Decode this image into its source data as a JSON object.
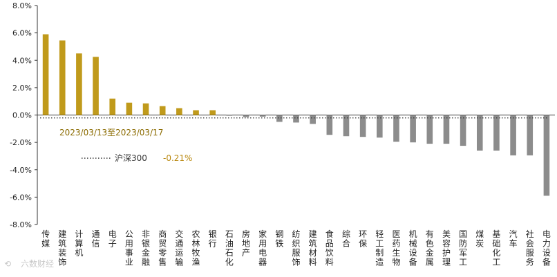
{
  "chart_data": {
    "type": "bar",
    "title": "",
    "xlabel": "",
    "ylabel": "",
    "ylim": [
      -8,
      8
    ],
    "yticks": [
      "8.0%",
      "6.0%",
      "4.0%",
      "2.0%",
      "0.0%",
      "-2.0%",
      "-4.0%",
      "-6.0%",
      "-8.0%"
    ],
    "categories": [
      "传媒",
      "建筑装饰",
      "计算机",
      "通信",
      "电子",
      "公用事业",
      "非银金融",
      "商贸零售",
      "交通运输",
      "农林牧渔",
      "银行",
      "石油石化",
      "房地产",
      "家用电器",
      "钢铁",
      "纺织服饰",
      "建筑材料",
      "食品饮料",
      "综合",
      "环保",
      "轻工制造",
      "医药生物",
      "机械设备",
      "有色金属",
      "美容护理",
      "国防军工",
      "煤炭",
      "基础化工",
      "汽车",
      "社会服务",
      "电力设备"
    ],
    "values": [
      5.9,
      5.45,
      4.5,
      4.25,
      1.2,
      0.9,
      0.85,
      0.65,
      0.5,
      0.35,
      0.35,
      -0.05,
      -0.15,
      -0.12,
      -0.5,
      -0.55,
      -0.65,
      -1.45,
      -1.55,
      -1.6,
      -1.65,
      -1.95,
      -2.0,
      -2.1,
      -2.1,
      -2.25,
      -2.6,
      -2.6,
      -2.95,
      -2.95,
      -5.9
    ],
    "reference_line": {
      "label": "沪深300",
      "value": -0.21,
      "value_label": "-0.21%"
    },
    "annotation": "2023/03/13至2023/03/17",
    "colors": {
      "positive": "#C09A1B",
      "negative": "#8C8C8C",
      "annotation": "#8B6B00",
      "reference": "#333333",
      "value_label": "#B8860B"
    },
    "grid": false
  },
  "watermark": "六数财经"
}
